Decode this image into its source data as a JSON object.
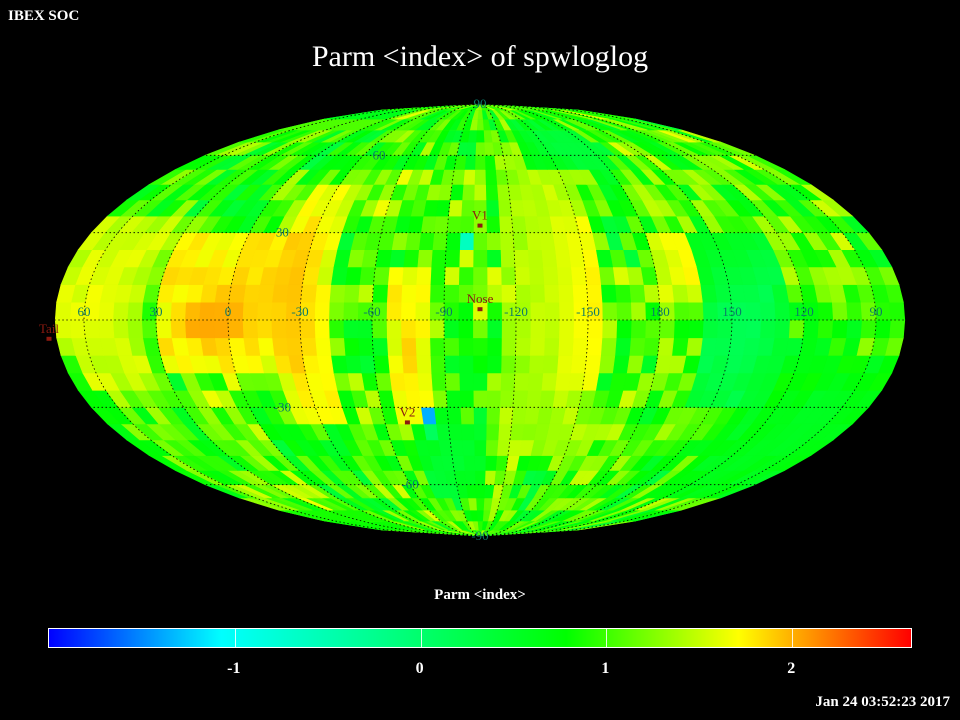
{
  "corner_label": "IBEX SOC",
  "title": "Parm  <index> of spwloglog",
  "colorbar_label": "Parm  <index>",
  "timestamp": "Jan 24 03:52:23 2017",
  "colorbar": {
    "range": [
      -2.0,
      2.65
    ],
    "stops": [
      "#0000ff",
      "#00ffff",
      "#00ff80",
      "#00ff00",
      "#ffff00",
      "#ff0000"
    ],
    "ticks": [
      {
        "value": -1,
        "label": "-1"
      },
      {
        "value": 0,
        "label": "0"
      },
      {
        "value": 1,
        "label": "1"
      },
      {
        "value": 2,
        "label": "2"
      }
    ]
  },
  "map": {
    "projection": "mollweide",
    "center_longitude": 255,
    "longitude_direction": "increasing-left",
    "grid_spacing_deg": 30,
    "value_range": [
      -2.0,
      2.65
    ],
    "latitude_labels": [
      {
        "text": "90",
        "lon": 255,
        "lat": 90
      },
      {
        "text": "60",
        "lon": 320,
        "lat": 60
      },
      {
        "text": "30",
        "lon": 345,
        "lat": 30
      },
      {
        "text": "-30",
        "lon": 345,
        "lat": -30
      },
      {
        "text": "-60",
        "lon": 300,
        "lat": -60
      },
      {
        "text": "-90",
        "lon": 255,
        "lat": -90
      }
    ],
    "longitude_labels": [
      {
        "text": "60",
        "lon": 60
      },
      {
        "text": "30",
        "lon": 30
      },
      {
        "text": "0",
        "lon": 0
      },
      {
        "text": "-30",
        "lon": 330
      },
      {
        "text": "-60",
        "lon": 300
      },
      {
        "text": "-90",
        "lon": 270
      },
      {
        "text": "-120",
        "lon": 240
      },
      {
        "text": "-150",
        "lon": 210
      },
      {
        "text": "180",
        "lon": 180
      },
      {
        "text": "150",
        "lon": 150
      },
      {
        "text": "120",
        "lon": 120
      },
      {
        "text": "90",
        "lon": 90
      }
    ],
    "markers": [
      {
        "name": "v1",
        "label": "V1",
        "lon": 255,
        "lat": 34
      },
      {
        "name": "nose",
        "label": "Nose",
        "lon": 255,
        "lat": 5
      },
      {
        "name": "v2",
        "label": "V2",
        "lon": 289,
        "lat": -34
      },
      {
        "name": "tail",
        "label": "Tail",
        "lon": 75,
        "lat": -5
      }
    ],
    "cell_values": {
      "lon_step": 6,
      "lat_step": 6,
      "baseline": 1.0,
      "noise_amplitude": 0.45,
      "features": [
        {
          "lon": 5,
          "lat": 0,
          "value": 2.55,
          "d_lon": 10,
          "d_lat": 6
        },
        {
          "lon": 0,
          "lat": 5,
          "value": 2.0,
          "d_lon": 30,
          "d_lat": 25
        },
        {
          "lon": 330,
          "lat": 5,
          "value": 1.95,
          "d_lon": 10,
          "d_lat": 40
        },
        {
          "lon": 285,
          "lat": -10,
          "value": 1.9,
          "d_lon": 8,
          "d_lat": 30
        },
        {
          "lon": 212,
          "lat": 5,
          "value": 2.3,
          "d_lon": 10,
          "d_lat": 28
        },
        {
          "lon": 55,
          "lat": 5,
          "value": 1.7,
          "d_lon": 20,
          "d_lat": 30
        },
        {
          "lon": 160,
          "lat": 20,
          "value": 1.8,
          "d_lon": 20,
          "d_lat": 12
        },
        {
          "lon": 225,
          "lat": 10,
          "value": 1.55,
          "d_lon": 18,
          "d_lat": 55
        },
        {
          "lon": 262,
          "lat": 28,
          "value": -1.0,
          "d_lon": 2,
          "d_lat": 3
        },
        {
          "lon": 145,
          "lat": 0,
          "value": 0.15,
          "d_lon": 18,
          "d_lat": 32
        },
        {
          "lon": 280,
          "lat": -35,
          "value": -2.0,
          "d_lon": 3,
          "d_lat": 4
        },
        {
          "lon": 200,
          "lat": 65,
          "value": 0.3,
          "d_lon": 25,
          "d_lat": 10
        },
        {
          "lon": 270,
          "lat": -50,
          "value": 0.4,
          "d_lon": 20,
          "d_lat": 15
        },
        {
          "lon": 100,
          "lat": -40,
          "value": 0.55,
          "d_lon": 35,
          "d_lat": 25
        }
      ]
    }
  }
}
